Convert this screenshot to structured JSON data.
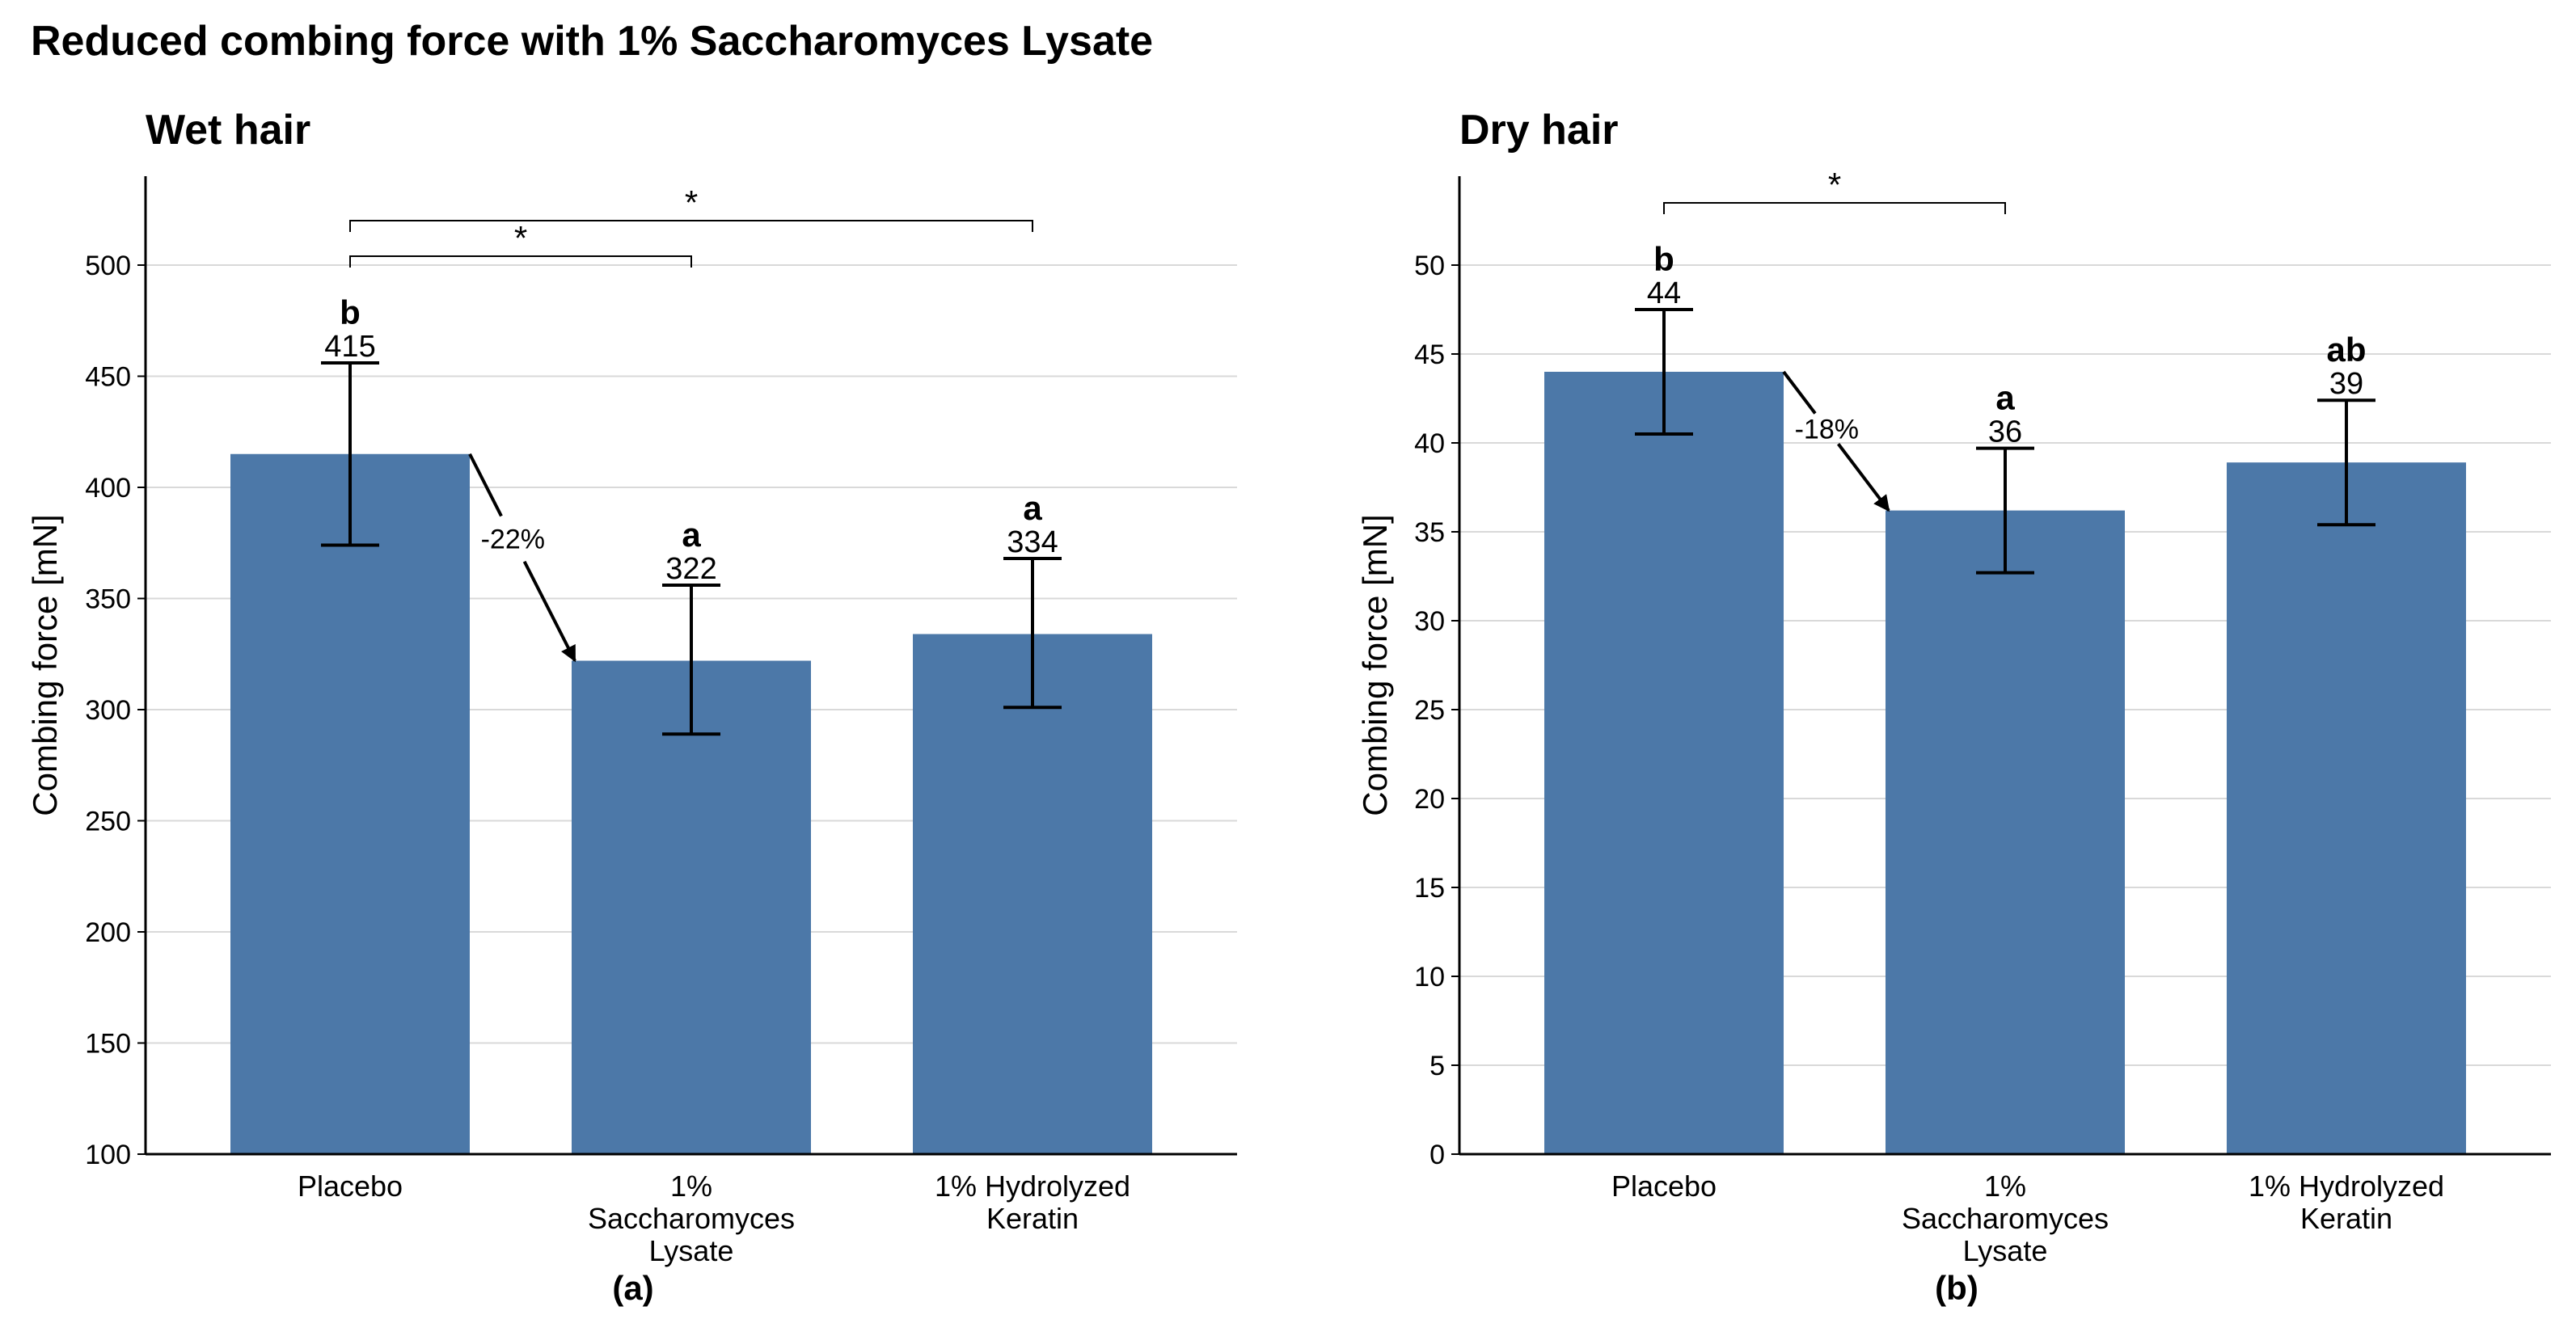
{
  "title": "Reduced combing force with 1% Saccharomyces Lysate",
  "colors": {
    "bar": "#4c78a8",
    "grid": "#d9d9d9",
    "axis": "#000000"
  },
  "chart_data": [
    {
      "type": "bar",
      "panel_label": "(a)",
      "title": "Wet hair",
      "ylabel": "Combing force [mN]",
      "xlabel": "",
      "ylim": [
        100,
        540
      ],
      "yticks": [
        100,
        150,
        200,
        250,
        300,
        350,
        400,
        450,
        500
      ],
      "grid": true,
      "categories": [
        [
          "Placebo"
        ],
        [
          "1%",
          "Saccharomyces",
          "Lysate"
        ],
        [
          "1% Hydrolyzed",
          "Keratin"
        ]
      ],
      "values": [
        415,
        322,
        334
      ],
      "error_low": [
        374,
        289,
        301
      ],
      "error_high": [
        456,
        356,
        368
      ],
      "value_labels": [
        "415",
        "322",
        "334"
      ],
      "group_letters": [
        "b",
        "a",
        "a"
      ],
      "significance": [
        {
          "from": 0,
          "to": 1,
          "label": "*",
          "y": 504
        },
        {
          "from": 0,
          "to": 2,
          "label": "*",
          "y": 520
        }
      ],
      "change_annotation": {
        "from": 0,
        "to": 1,
        "label": "-22%"
      }
    },
    {
      "type": "bar",
      "panel_label": "(b)",
      "title": "Dry hair",
      "ylabel": "Combing force [mN]",
      "xlabel": "",
      "ylim": [
        0,
        55
      ],
      "yticks": [
        0,
        5,
        10,
        15,
        20,
        25,
        30,
        35,
        40,
        45,
        50
      ],
      "grid": true,
      "categories": [
        [
          "Placebo"
        ],
        [
          "1%",
          "Saccharomyces",
          "Lysate"
        ],
        [
          "1% Hydrolyzed",
          "Keratin"
        ]
      ],
      "values": [
        44,
        36.2,
        38.9
      ],
      "error_low": [
        40.5,
        32.7,
        35.4
      ],
      "error_high": [
        47.5,
        39.7,
        42.4
      ],
      "value_labels": [
        "44",
        "36",
        "39"
      ],
      "group_letters": [
        "b",
        "a",
        "ab"
      ],
      "significance": [
        {
          "from": 0,
          "to": 1,
          "label": "*",
          "y": 53.5
        }
      ],
      "change_annotation": {
        "from": 0,
        "to": 1,
        "label": "-18%"
      }
    }
  ]
}
